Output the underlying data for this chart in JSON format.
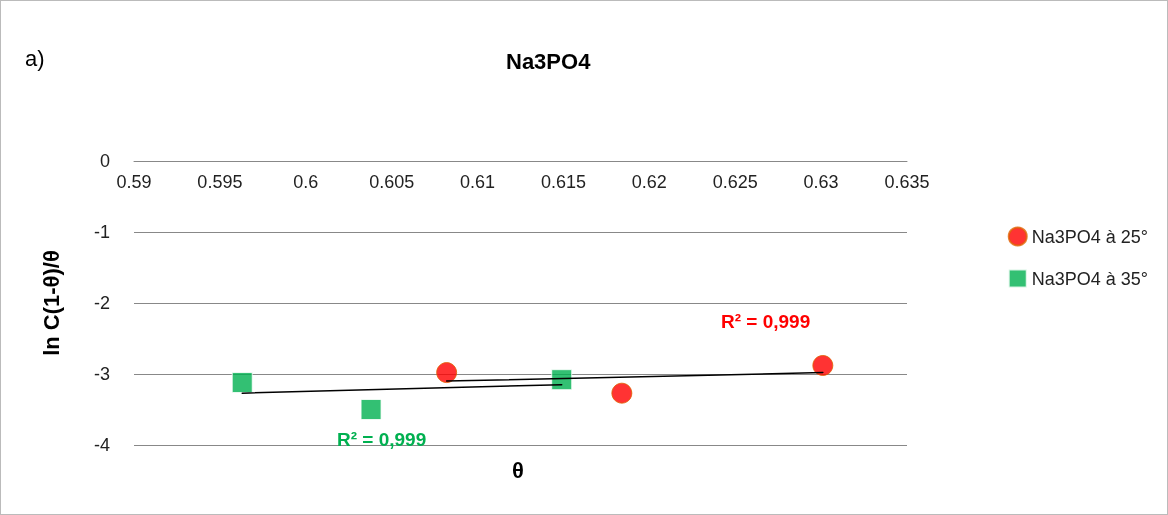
{
  "chart_data": {
    "type": "scatter",
    "title": "Na3PO4",
    "xlabel": "θ",
    "ylabel": "ln C(1-θ)/θ",
    "annotations": [
      "R² = 0,999",
      "R² = 0,999",
      "a)"
    ],
    "series": [
      {
        "name": "Na3PO4 à 25°",
        "color": "#ff0000",
        "marker": "circle",
        "x": [
          0.6082,
          0.6184,
          0.6301
        ],
        "values": [
          -2.98,
          -3.27,
          -2.88
        ]
      },
      {
        "name": "Na3PO4 à 35°",
        "color": "#00b050",
        "marker": "square",
        "x": [
          0.5963,
          0.6038,
          0.6149
        ],
        "values": [
          -3.12,
          -3.5,
          -3.08
        ]
      },
      {
        "type": "line",
        "color": "#000000",
        "marker": "none",
        "x": [
          0.6082,
          0.6301
        ],
        "values": [
          -3.1,
          -2.98
        ]
      },
      {
        "type": "line",
        "color": "#000000",
        "marker": "none",
        "x": [
          0.5963,
          0.6149
        ],
        "values": [
          -3.27,
          -3.15
        ]
      }
    ],
    "xlim": [
      0.59,
      0.635
    ],
    "xticks": [
      0.59,
      0.595,
      0.6,
      0.605,
      0.61,
      0.615,
      0.62,
      0.625,
      0.63,
      0.635
    ],
    "ylim": [
      -4,
      0
    ],
    "yticks": [
      -4,
      -3,
      -2,
      -1,
      0
    ],
    "grid": "y",
    "legend": "right"
  }
}
